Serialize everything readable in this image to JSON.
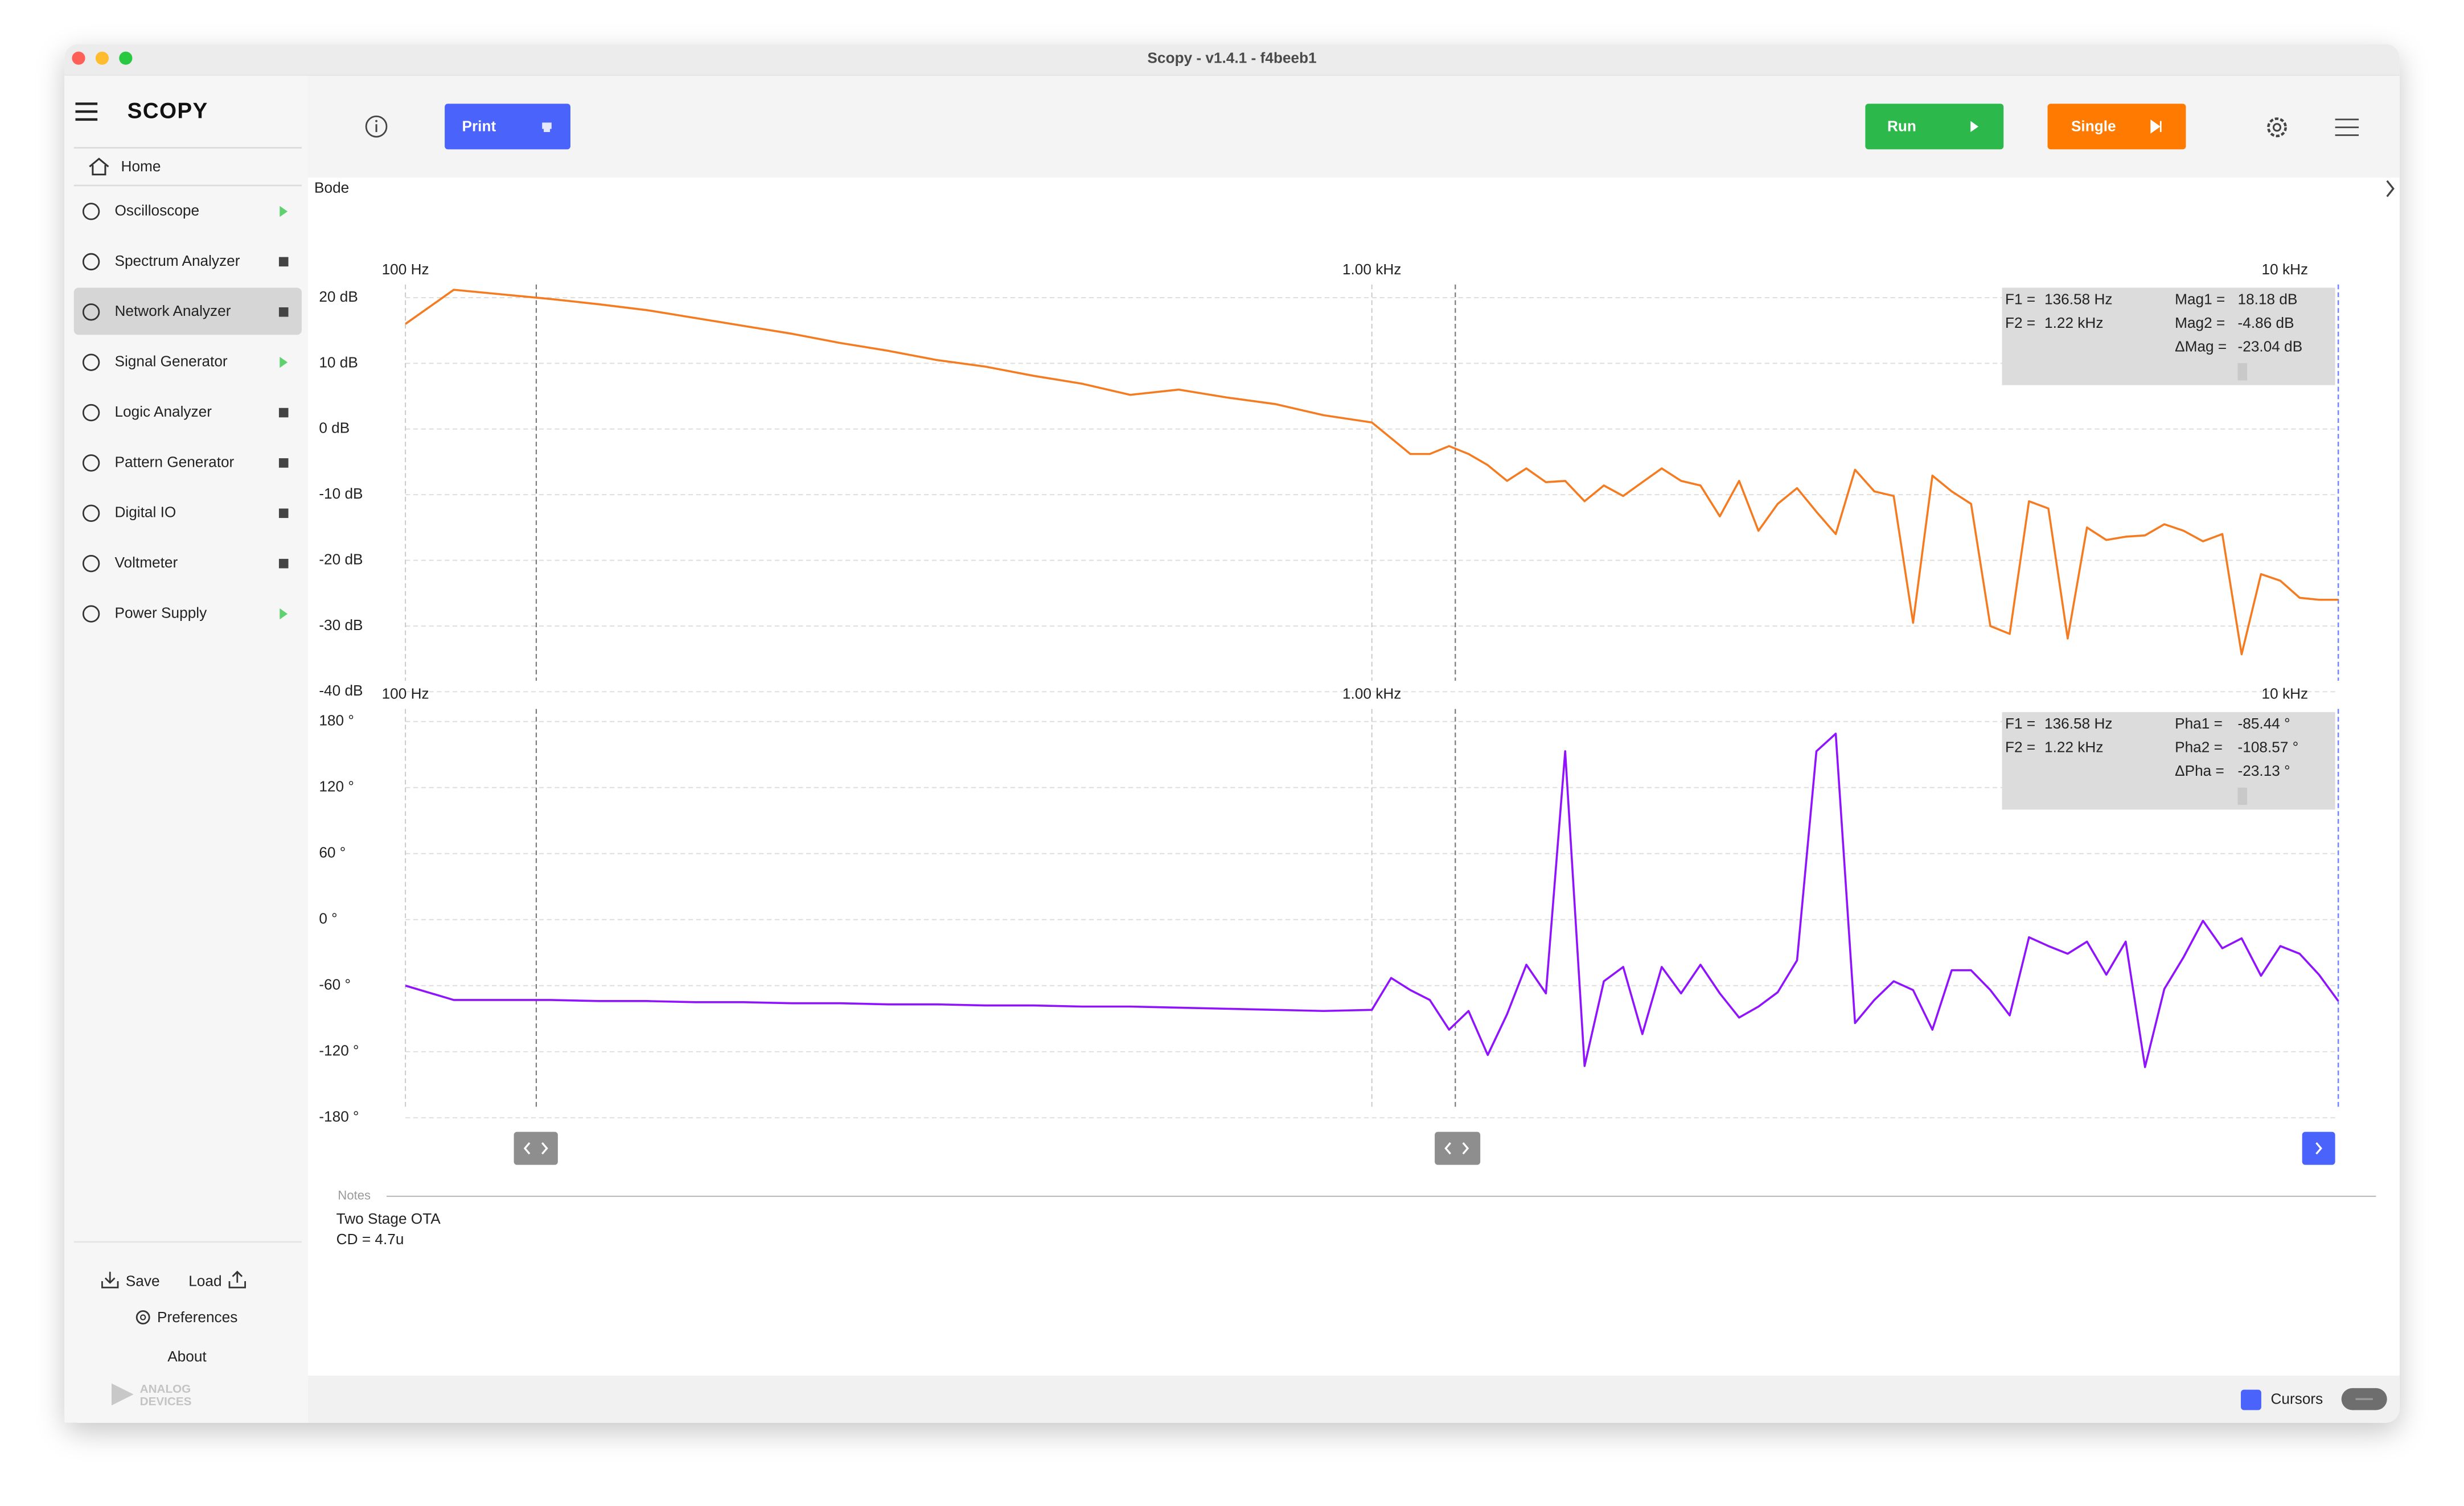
{
  "window": {
    "title": "Scopy - v1.4.1 - f4beeb1"
  },
  "sidebar": {
    "logo": "SCOPY",
    "home": "Home",
    "tools": [
      "Oscilloscope",
      "Spectrum Analyzer",
      "Network Analyzer",
      "Signal Generator",
      "Logic Analyzer",
      "Pattern Generator",
      "Digital IO",
      "Voltmeter",
      "Power Supply"
    ],
    "save": "Save",
    "load": "Load",
    "preferences": "Preferences",
    "about": "About",
    "brand": [
      "ANALOG",
      "DEVICES"
    ]
  },
  "toolbar": {
    "print": "Print",
    "run": "Run",
    "single": "Single"
  },
  "plot_title": "Bode",
  "chart_data": [
    {
      "type": "line",
      "xscale": "log",
      "grid": true,
      "x": [
        100,
        112.2,
        125.9,
        141.3,
        158.5,
        177.8,
        199.5,
        223.9,
        251.2,
        281.8,
        316.2,
        354.8,
        398.1,
        446.7,
        501.2,
        562.3,
        631,
        707.9,
        794.3,
        891.3,
        1000,
        1047,
        1096,
        1148,
        1202,
        1259,
        1318,
        1380,
        1445,
        1514,
        1585,
        1660,
        1738,
        1820,
        1905,
        1995,
        2089,
        2188,
        2291,
        2399,
        2512,
        2630,
        2754,
        2884,
        3020,
        3162,
        3311,
        3467,
        3631,
        3802,
        3981,
        4169,
        4365,
        4571,
        4786,
        5012,
        5248,
        5495,
        5754,
        6026,
        6310,
        6607,
        6918,
        7244,
        7586,
        7943,
        8318,
        8710,
        9120,
        9550,
        10000
      ],
      "series": [
        {
          "color": "#f47b20",
          "values": [
            16.0,
            21.2,
            20.5,
            19.8,
            19.0,
            18.1,
            16.9,
            15.7,
            14.5,
            13.1,
            11.9,
            10.5,
            9.5,
            8.1,
            6.9,
            5.2,
            6.0,
            4.8,
            3.8,
            2.1,
            1.0,
            -1.4,
            -3.8,
            -3.8,
            -2.6,
            -3.8,
            -5.5,
            -7.9,
            -6.0,
            -8.1,
            -7.9,
            -11.0,
            -8.6,
            -10.2,
            -8.1,
            -6.0,
            -7.9,
            -8.6,
            -13.3,
            -7.9,
            -15.5,
            -11.4,
            -9.0,
            -12.6,
            -16.0,
            -6.2,
            -9.5,
            -10.2,
            -29.5,
            -7.1,
            -9.5,
            -11.4,
            -30.0,
            -31.2,
            -11.0,
            -12.1,
            -31.9,
            -15.0,
            -16.9,
            -16.4,
            -16.2,
            -14.5,
            -15.5,
            -17.1,
            -16.0,
            -34.3,
            -22.1,
            -23.1,
            -25.7,
            -26.0,
            -26.0
          ]
        }
      ],
      "xlim": [
        100,
        10000
      ],
      "xticks": [
        {
          "value": 100,
          "label": "100 Hz"
        },
        {
          "value": 1000,
          "label": "1.00 kHz"
        },
        {
          "value": 10000,
          "label": "10 kHz"
        }
      ],
      "ylim": [
        -40,
        22
      ],
      "yticks": [
        {
          "value": 20,
          "label": "20 dB"
        },
        {
          "value": 10,
          "label": "10 dB"
        },
        {
          "value": 0,
          "label": "0 dB"
        },
        {
          "value": -10,
          "label": "-10 dB"
        },
        {
          "value": -20,
          "label": "-20 dB"
        },
        {
          "value": -30,
          "label": "-30 dB"
        },
        {
          "value": -40,
          "label": "-40 dB"
        }
      ],
      "cursors": [
        {
          "value": 136.58,
          "label": "136.58 Hz"
        },
        {
          "value": 1220,
          "label": "1.22 kHz"
        }
      ],
      "readout": {
        "f_labels": [
          "F1 =",
          "F2 ="
        ],
        "m_labels": [
          "Mag1 =",
          "Mag2 =",
          "ΔMag ="
        ],
        "m_values": [
          "18.18 dB",
          "-4.86 dB",
          "-23.04 dB"
        ]
      }
    },
    {
      "type": "line",
      "xscale": "log",
      "grid": true,
      "x": [
        100,
        112.2,
        125.9,
        141.3,
        158.5,
        177.8,
        199.5,
        223.9,
        251.2,
        281.8,
        316.2,
        354.8,
        398.1,
        446.7,
        501.2,
        562.3,
        631,
        707.9,
        794.3,
        891.3,
        1000,
        1047,
        1096,
        1148,
        1202,
        1259,
        1318,
        1380,
        1445,
        1514,
        1585,
        1660,
        1738,
        1820,
        1905,
        1995,
        2089,
        2188,
        2291,
        2399,
        2512,
        2630,
        2754,
        2884,
        3020,
        3162,
        3311,
        3467,
        3631,
        3802,
        3981,
        4169,
        4365,
        4571,
        4786,
        5012,
        5248,
        5495,
        5754,
        6026,
        6310,
        6607,
        6918,
        7244,
        7586,
        7943,
        8318,
        8710,
        9120,
        9550,
        10000
      ],
      "series": [
        {
          "color": "#9013fe",
          "values": [
            -60,
            -73,
            -73,
            -73,
            -74,
            -74,
            -75,
            -75,
            -76,
            -76,
            -77,
            -77,
            -78,
            -78,
            -79,
            -79,
            -80,
            -81,
            -82,
            -83,
            -82,
            -53,
            -64,
            -73,
            -100,
            -83,
            -123,
            -86,
            -41,
            -67,
            153,
            -133,
            -56,
            -43,
            -104,
            -43,
            -67,
            -41,
            -67,
            -89,
            -79,
            -66,
            -37,
            153,
            169,
            -94,
            -73,
            -56,
            -64,
            -100,
            -46,
            -46,
            -64,
            -87,
            -16,
            -24,
            -31,
            -20,
            -50,
            -20,
            -134,
            -63,
            -34,
            -1,
            -26,
            -17,
            -51,
            -24,
            -31,
            -50,
            -74
          ]
        }
      ],
      "xlim": [
        100,
        10000
      ],
      "xticks": [
        {
          "value": 100,
          "label": "100 Hz"
        },
        {
          "value": 1000,
          "label": "1.00 kHz"
        },
        {
          "value": 10000,
          "label": "10 kHz"
        }
      ],
      "ylim": [
        -180,
        180
      ],
      "yticks": [
        {
          "value": 180,
          "label": "180 °"
        },
        {
          "value": 120,
          "label": "120 °"
        },
        {
          "value": 60,
          "label": "60 °"
        },
        {
          "value": 0,
          "label": "0 °"
        },
        {
          "value": -60,
          "label": "-60 °"
        },
        {
          "value": -120,
          "label": "-120 °"
        },
        {
          "value": -180,
          "label": "-180 °"
        }
      ],
      "cursors": [
        {
          "value": 136.58,
          "label": "136.58 Hz"
        },
        {
          "value": 1220,
          "label": "1.22 kHz"
        }
      ],
      "readout": {
        "f_labels": [
          "F1 =",
          "F2 ="
        ],
        "m_labels": [
          "Pha1 =",
          "Pha2 =",
          "ΔPha ="
        ],
        "m_values": [
          "-85.44 °",
          "-108.57 °",
          "-23.13 °"
        ]
      }
    }
  ],
  "notes": {
    "label": "Notes",
    "lines": [
      "Two Stage OTA",
      "CD = 4.7u"
    ]
  },
  "status_bar": {
    "cursors": "Cursors"
  }
}
